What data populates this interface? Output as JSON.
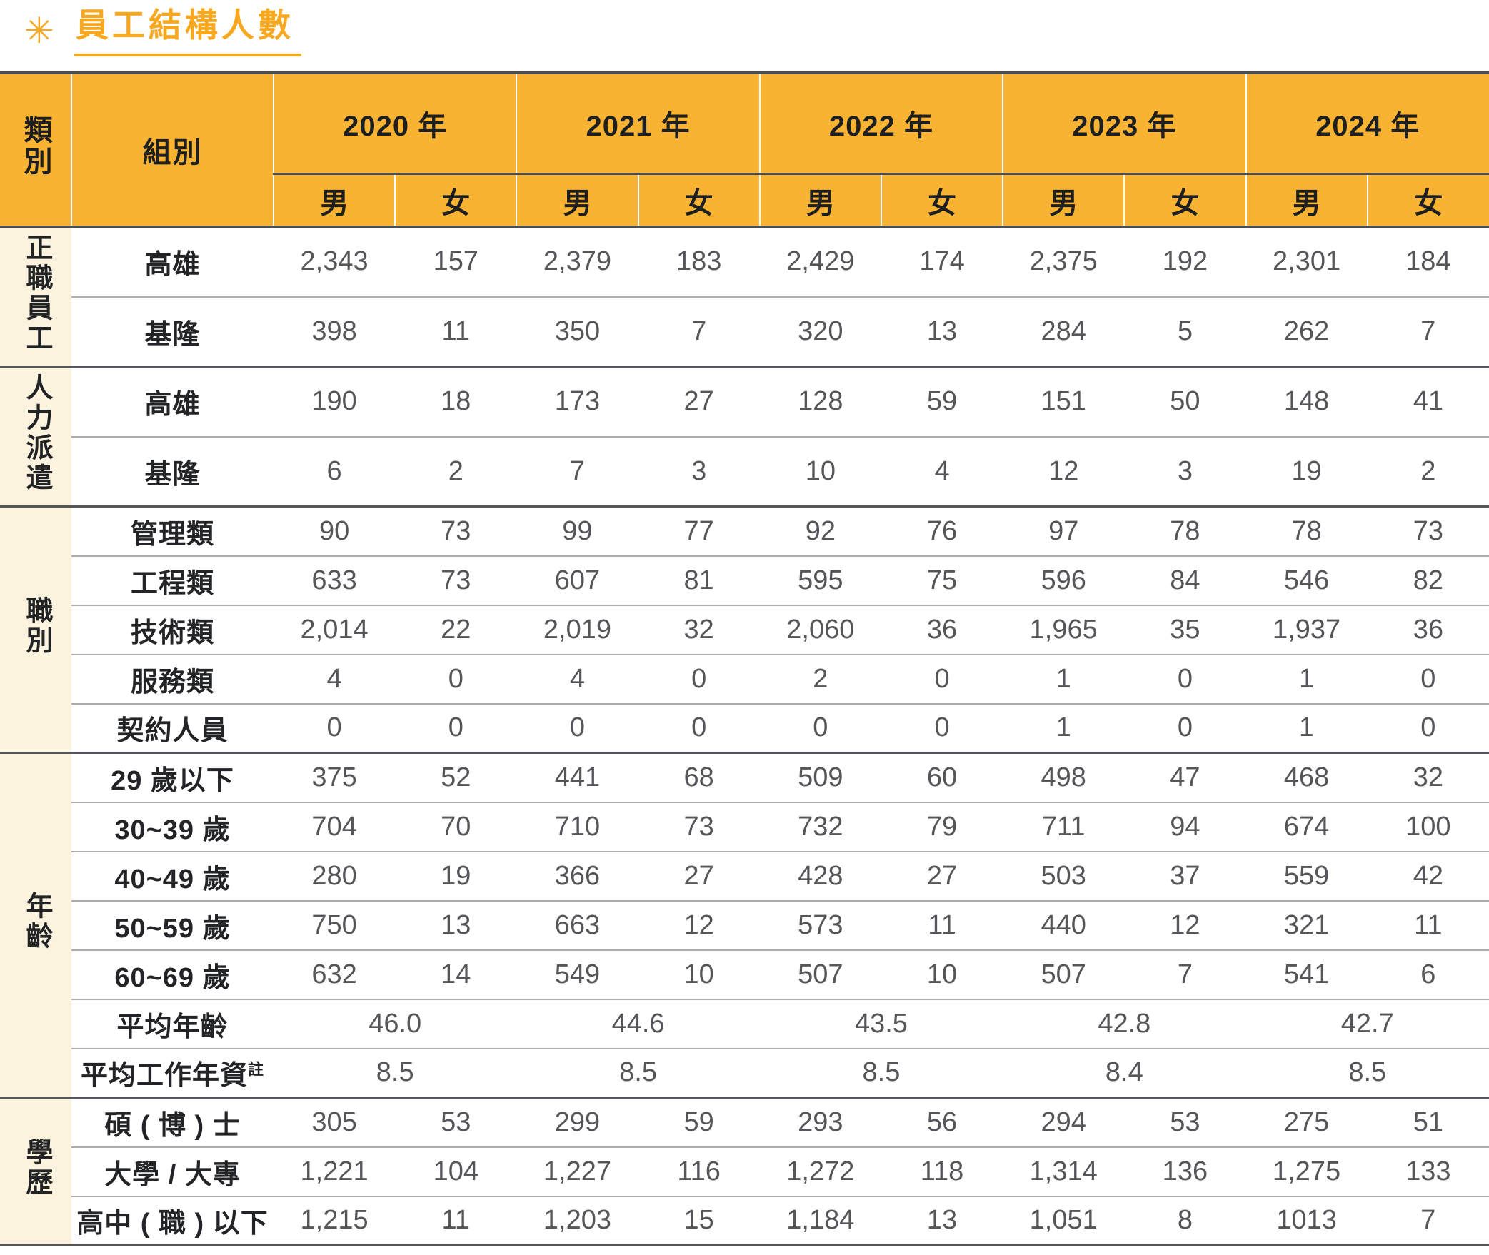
{
  "title": {
    "bullet_glyph": "✳",
    "text": "員工結構人數"
  },
  "colors": {
    "accent_orange": "#F8B332",
    "title_orange": "#F7A81E",
    "category_cream": "#FCF3DF",
    "dark_line": "#4c4d4f",
    "light_line": "#abadb0",
    "number_text": "#55565a"
  },
  "table": {
    "header": {
      "category_label": "類別",
      "group_label": "組別",
      "years": [
        "2020 年",
        "2021 年",
        "2022 年",
        "2023 年",
        "2024 年"
      ],
      "male": "男",
      "female": "女"
    },
    "sections": [
      {
        "category": "正職員工",
        "rows": [
          {
            "label": "高雄",
            "values": [
              "2,343",
              "157",
              "2,379",
              "183",
              "2,429",
              "174",
              "2,375",
              "192",
              "2,301",
              "184"
            ]
          },
          {
            "label": "基隆",
            "values": [
              "398",
              "11",
              "350",
              "7",
              "320",
              "13",
              "284",
              "5",
              "262",
              "7"
            ]
          }
        ]
      },
      {
        "category": "人力派遣",
        "rows": [
          {
            "label": "高雄",
            "values": [
              "190",
              "18",
              "173",
              "27",
              "128",
              "59",
              "151",
              "50",
              "148",
              "41"
            ]
          },
          {
            "label": "基隆",
            "values": [
              "6",
              "2",
              "7",
              "3",
              "10",
              "4",
              "12",
              "3",
              "19",
              "2"
            ]
          }
        ]
      },
      {
        "category": "職別",
        "rows": [
          {
            "label": "管理類",
            "values": [
              "90",
              "73",
              "99",
              "77",
              "92",
              "76",
              "97",
              "78",
              "78",
              "73"
            ]
          },
          {
            "label": "工程類",
            "values": [
              "633",
              "73",
              "607",
              "81",
              "595",
              "75",
              "596",
              "84",
              "546",
              "82"
            ]
          },
          {
            "label": "技術類",
            "values": [
              "2,014",
              "22",
              "2,019",
              "32",
              "2,060",
              "36",
              "1,965",
              "35",
              "1,937",
              "36"
            ]
          },
          {
            "label": "服務類",
            "values": [
              "4",
              "0",
              "4",
              "0",
              "2",
              "0",
              "1",
              "0",
              "1",
              "0"
            ]
          },
          {
            "label": "契約人員",
            "values": [
              "0",
              "0",
              "0",
              "0",
              "0",
              "0",
              "1",
              "0",
              "1",
              "0"
            ]
          }
        ]
      },
      {
        "category": "年齡",
        "rows": [
          {
            "label": "29 歲以下",
            "values": [
              "375",
              "52",
              "441",
              "68",
              "509",
              "60",
              "498",
              "47",
              "468",
              "32"
            ]
          },
          {
            "label": "30~39 歲",
            "values": [
              "704",
              "70",
              "710",
              "73",
              "732",
              "79",
              "711",
              "94",
              "674",
              "100"
            ]
          },
          {
            "label": "40~49 歲",
            "values": [
              "280",
              "19",
              "366",
              "27",
              "428",
              "27",
              "503",
              "37",
              "559",
              "42"
            ]
          },
          {
            "label": "50~59 歲",
            "values": [
              "750",
              "13",
              "663",
              "12",
              "573",
              "11",
              "440",
              "12",
              "321",
              "11"
            ]
          },
          {
            "label": "60~69 歲",
            "values": [
              "632",
              "14",
              "549",
              "10",
              "507",
              "10",
              "507",
              "7",
              "541",
              "6"
            ]
          },
          {
            "label": "平均年齡",
            "span_years": true,
            "values": [
              "46.0",
              "44.6",
              "43.5",
              "42.8",
              "42.7"
            ]
          },
          {
            "label": "平均工作年資",
            "note_mark": "註",
            "span_years": true,
            "values": [
              "8.5",
              "8.5",
              "8.5",
              "8.4",
              "8.5"
            ]
          }
        ]
      },
      {
        "category": "學歷",
        "rows": [
          {
            "label": "碩 ( 博 ) 士",
            "values": [
              "305",
              "53",
              "299",
              "59",
              "293",
              "56",
              "294",
              "53",
              "275",
              "51"
            ]
          },
          {
            "label": "大學 / 大專",
            "values": [
              "1,221",
              "104",
              "1,227",
              "116",
              "1,272",
              "118",
              "1,314",
              "136",
              "1,275",
              "133"
            ]
          },
          {
            "label": "高中 ( 職 ) 以下",
            "values": [
              "1,215",
              "11",
              "1,203",
              "15",
              "1,184",
              "13",
              "1,051",
              "8",
              "1013",
              "7"
            ]
          }
        ]
      }
    ]
  }
}
